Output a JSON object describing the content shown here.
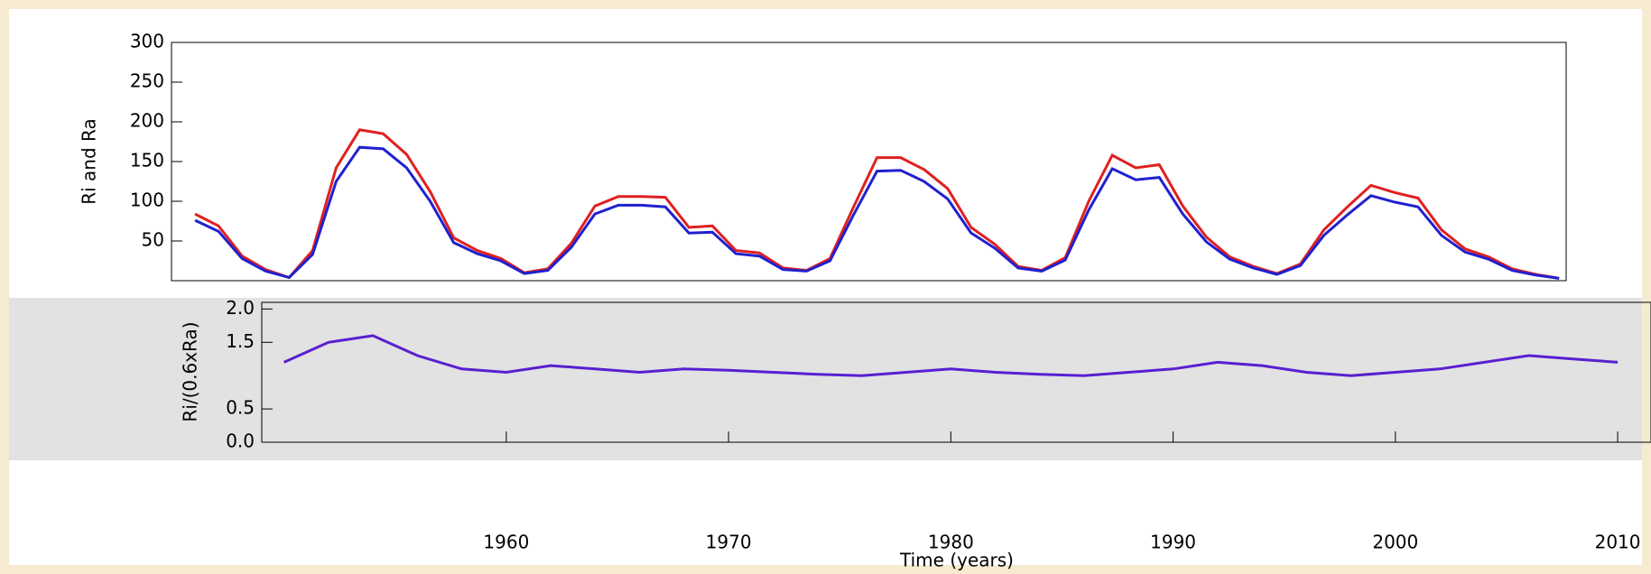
{
  "chart_data": [
    {
      "type": "line",
      "ylabel": "Ri and Ra",
      "x": [
        1950,
        1951,
        1952,
        1953,
        1954,
        1955,
        1956,
        1957,
        1958,
        1959,
        1960,
        1961,
        1962,
        1963,
        1964,
        1965,
        1966,
        1967,
        1968,
        1969,
        1970,
        1971,
        1972,
        1973,
        1974,
        1975,
        1976,
        1977,
        1978,
        1979,
        1980,
        1981,
        1982,
        1983,
        1984,
        1985,
        1986,
        1987,
        1988,
        1989,
        1990,
        1991,
        1992,
        1993,
        1994,
        1995,
        1996,
        1997,
        1998,
        1999,
        2000,
        2001,
        2002,
        2003,
        2004,
        2005,
        2006,
        2007,
        2008
      ],
      "series": [
        {
          "color": "#e02020",
          "values": [
            84,
            69,
            31,
            14,
            4,
            38,
            142,
            190,
            185,
            159,
            112,
            54,
            38,
            28,
            10,
            15,
            47,
            94,
            106,
            106,
            105,
            67,
            69,
            38,
            35,
            16,
            13,
            28,
            93,
            155,
            155,
            140,
            116,
            67,
            46,
            18,
            13,
            29,
            100,
            158,
            142,
            146,
            94,
            55,
            30,
            18,
            9,
            21,
            64,
            93,
            120,
            111,
            104,
            64,
            40,
            30,
            15,
            8,
            3
          ]
        },
        {
          "color": "#2020d0",
          "values": [
            76,
            62,
            28,
            12,
            4,
            33,
            125,
            168,
            166,
            142,
            100,
            48,
            34,
            25,
            9,
            13,
            42,
            84,
            95,
            95,
            93,
            60,
            61,
            34,
            31,
            14,
            12,
            25,
            83,
            138,
            139,
            125,
            103,
            60,
            41,
            16,
            12,
            26,
            89,
            141,
            127,
            130,
            84,
            49,
            27,
            16,
            8,
            19,
            57,
            83,
            107,
            99,
            93,
            57,
            36,
            27,
            13,
            7,
            3
          ]
        }
      ],
      "xlim": [
        1949,
        2008.3
      ],
      "ylim": [
        0,
        300
      ],
      "yticks": [
        50,
        100,
        150,
        200,
        250,
        300
      ]
    },
    {
      "type": "line",
      "xlabel": "Time (years)",
      "ylabel": "Ri/(0.6xRa)",
      "x": [
        1950,
        1952,
        1954,
        1956,
        1958,
        1960,
        1962,
        1964,
        1966,
        1968,
        1970,
        1972,
        1974,
        1976,
        1978,
        1980,
        1982,
        1984,
        1986,
        1988,
        1990,
        1992,
        1994,
        1996,
        1998,
        2000,
        2002,
        2004,
        2006,
        2008,
        2010
      ],
      "series": [
        {
          "color": "#5a1fd0",
          "values": [
            1.2,
            1.5,
            1.6,
            1.3,
            1.1,
            1.05,
            1.15,
            1.1,
            1.05,
            1.1,
            1.08,
            1.05,
            1.02,
            1.0,
            1.05,
            1.1,
            1.05,
            1.02,
            1.0,
            1.05,
            1.1,
            1.2,
            1.15,
            1.05,
            1.0,
            1.05,
            1.1,
            1.2,
            1.3,
            1.25,
            1.2
          ]
        }
      ],
      "xlim": [
        1949,
        2011.5
      ],
      "ylim": [
        0,
        2.1
      ],
      "yticks": [
        {
          "value": 0,
          "label": "0.0"
        },
        0.5,
        1.5,
        {
          "value": 2,
          "label": "2.0"
        }
      ],
      "xticks": [
        1960,
        1970,
        1980,
        1990,
        2000,
        2010
      ]
    }
  ]
}
